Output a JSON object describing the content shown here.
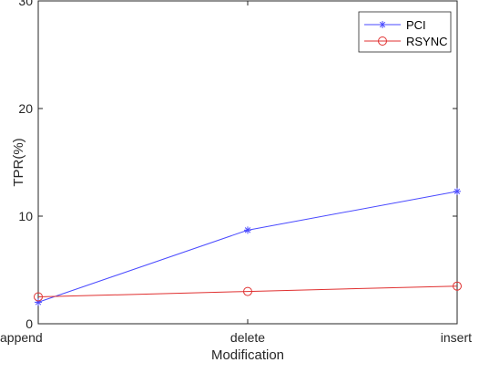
{
  "chart_data": {
    "type": "line",
    "categories": [
      "append",
      "delete",
      "insert"
    ],
    "series": [
      {
        "name": "PCI",
        "values": [
          2.0,
          8.7,
          12.3
        ],
        "color": "#4a4aff",
        "marker": "asterisk"
      },
      {
        "name": "RSYNC",
        "values": [
          2.5,
          3.0,
          3.5
        ],
        "color": "#e03030",
        "marker": "circle"
      }
    ],
    "title": "",
    "xlabel": "Modification",
    "ylabel": "TPR(%)",
    "ylim": [
      0,
      30
    ],
    "yticks": [
      0,
      10,
      20,
      30
    ],
    "grid": false,
    "legend_position": "top-right"
  }
}
